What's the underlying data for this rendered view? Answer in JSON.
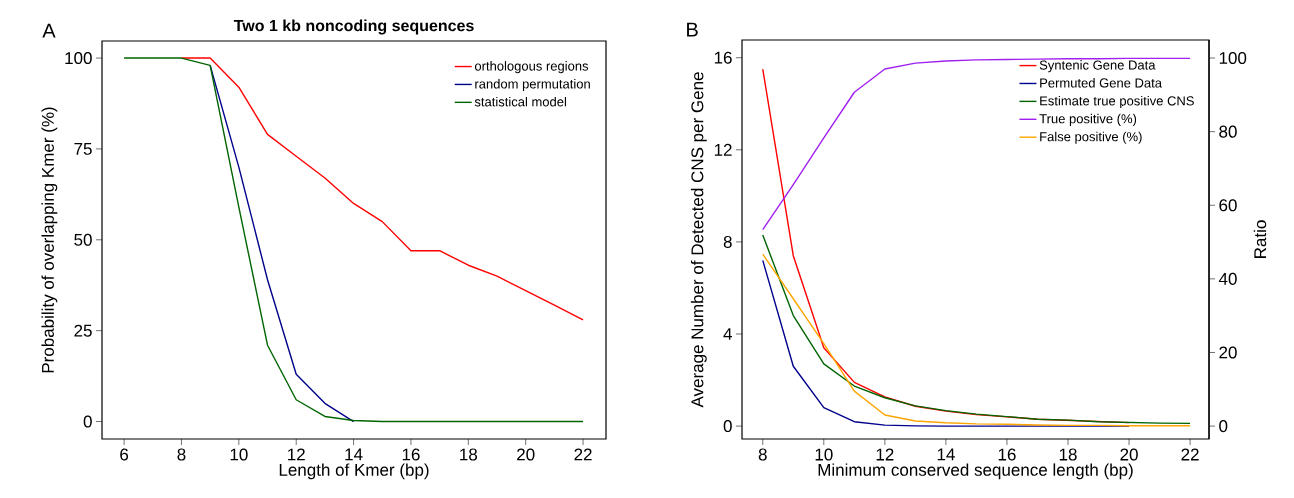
{
  "chart_data": [
    {
      "type": "line",
      "title": "Two 1 kb noncoding sequences",
      "xlabel": "Length of Kmer (bp)",
      "ylabel": "Probability of overlapping Kmer (%)",
      "annotations": [
        "A"
      ],
      "x": [
        6,
        7,
        8,
        9,
        10,
        11,
        12,
        13,
        14,
        15,
        16,
        17,
        18,
        19,
        20,
        21,
        22
      ],
      "series": [
        {
          "name": "orthologous regions",
          "color": "#ff0000",
          "values": [
            null,
            null,
            100,
            100,
            92,
            79,
            73,
            67,
            60,
            55,
            47,
            47,
            43,
            40,
            36,
            32,
            28
          ]
        },
        {
          "name": "random permutation",
          "color": "#00008b",
          "values": [
            null,
            null,
            null,
            98,
            70,
            39,
            13,
            5,
            0,
            null,
            null,
            null,
            null,
            null,
            null,
            null,
            null
          ]
        },
        {
          "name": "statistical model",
          "color": "#006400",
          "values": [
            100,
            100,
            100,
            98,
            59,
            21,
            6,
            1.4,
            0.3,
            0,
            0,
            0,
            0,
            0,
            0,
            0,
            0
          ]
        }
      ],
      "xlim": [
        5.23,
        22.8
      ],
      "ylim": [
        -4.8,
        104.7
      ],
      "xticks": [
        6,
        8,
        10,
        12,
        14,
        16,
        18,
        20,
        22
      ],
      "yticks": [
        0,
        25,
        50,
        75,
        100
      ],
      "legend": "top right",
      "grid": false
    },
    {
      "type": "line",
      "xlabel": "Minimum conserved sequence length (bp)",
      "ylabel": "Average Number of Detected CNS per Gene",
      "y2label": "Ratio",
      "annotations": [
        "B"
      ],
      "x": [
        8,
        9,
        10,
        11,
        12,
        13,
        14,
        15,
        16,
        17,
        18,
        19,
        20,
        21,
        22
      ],
      "series": [
        {
          "name": "Syntenic Gene Data",
          "color": "#ff0000",
          "values": [
            15.5,
            7.4,
            3.4,
            1.9,
            1.27,
            0.86,
            0.65,
            0.5,
            0.4,
            0.3,
            null,
            null,
            0.15,
            null,
            null
          ]
        },
        {
          "name": "Permuted Gene Data",
          "color": "#00008b",
          "values": [
            7.2,
            2.6,
            0.8,
            0.19,
            0.04,
            0.01,
            0,
            0,
            0,
            0,
            0,
            0,
            0,
            null,
            null
          ]
        },
        {
          "name": "Estimate true positive CNS",
          "color": "#006400",
          "values": [
            8.3,
            4.8,
            2.7,
            1.74,
            1.23,
            0.88,
            0.67,
            0.52,
            0.41,
            0.3,
            0.26,
            0.19,
            0.16,
            0.13,
            0.12
          ]
        },
        {
          "name": "True positive (%)",
          "color": "#a020f0",
          "axis": "y2",
          "values": [
            53.4,
            65.6,
            78.3,
            90.7,
            97,
            98.6,
            99.2,
            99.5,
            99.6,
            99.7,
            99.8,
            99.8,
            99.9,
            99.9,
            99.9
          ]
        },
        {
          "name": "False positive (%)",
          "color": "#ffa500",
          "axis": "y2",
          "values": [
            46.7,
            34.6,
            22.4,
            9.5,
            3,
            1.4,
            0.9,
            0.6,
            0.5,
            0.3,
            0.2,
            0.2,
            0.1,
            0.1,
            0.1
          ]
        }
      ],
      "xlim": [
        7.32,
        22.62
      ],
      "ylim": [
        -0.56,
        16.77
      ],
      "xticks": [
        8,
        10,
        12,
        14,
        16,
        18,
        20,
        22
      ],
      "yticks": [
        0,
        4,
        8,
        12,
        16
      ],
      "y2lim": [
        -3.5,
        104.9
      ],
      "y2ticks": [
        0,
        20,
        40,
        60,
        80,
        100
      ],
      "legend": "top right",
      "grid": false
    }
  ]
}
